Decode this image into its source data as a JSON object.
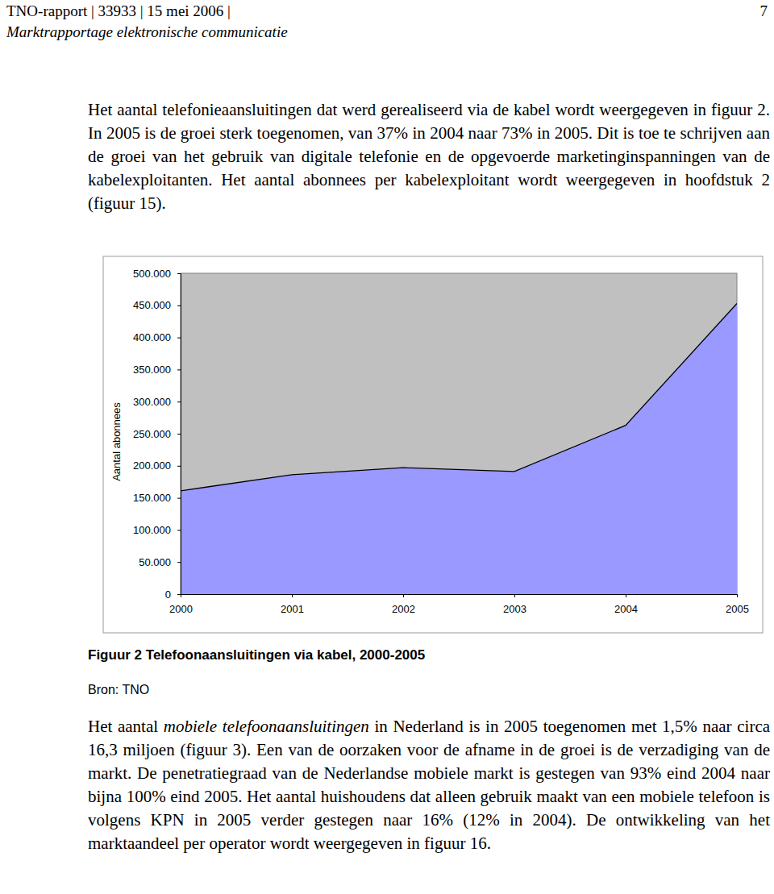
{
  "header": {
    "left": "TNO-rapport | 33933 | 15 mei 2006 |",
    "page": "7",
    "subtitle": "Marktrapportage elektronische communicatie"
  },
  "paragraphs": [
    {
      "before": "Het aantal telefonieaansluitingen dat werd gerealiseerd via de kabel wordt weergegeven in figuur 2. In 2005 is de groei sterk toegenomen, van 37% in 2004 naar 73% in 2005. Dit is toe te schrijven aan de groei van het gebruik van digitale telefonie en de opgevoerde marketinginspanningen van de kabelexploitanten. Het aantal abonnees per kabelexploitant wordt weergegeven in hoofdstuk 2 (figuur 15)."
    },
    {
      "before": "Het aantal ",
      "emphasis": "mobiele telefoonaansluitingen",
      "after": " in Nederland is in 2005 toegenomen met 1,5% naar circa 16,3 miljoen (figuur 3). Een van de oorzaken voor de afname in de groei is de verzadiging van de markt. De penetratiegraad van de Nederlandse mobiele markt is gestegen van 93% eind 2004 naar bijna 100% eind 2005. Het aantal huishoudens dat alleen gebruik maakt van een mobiele telefoon is volgens KPN in 2005 verder gestegen naar 16% (12% in 2004). De ontwikkeling van het marktaandeel per operator wordt weergegeven in figuur 16."
    }
  ],
  "chart_data": {
    "type": "area",
    "title": "Figuur 2 Telefoonaansluitingen via kabel, 2000-2005",
    "source": "Bron: TNO",
    "y_label": "Aantal abonnees",
    "categories": [
      "2000",
      "2001",
      "2002",
      "2003",
      "2004",
      "2005"
    ],
    "values": [
      161000,
      186000,
      197000,
      191000,
      263000,
      453000
    ],
    "color": "#9999ff",
    "ylim": [
      0,
      500000
    ],
    "yticks": [
      0,
      {
        "value": 50000,
        "label": "50.000"
      },
      {
        "value": 100000,
        "label": "100.000"
      },
      {
        "value": 150000,
        "label": "150.000"
      },
      {
        "value": 200000,
        "label": "200.000"
      },
      {
        "value": 250000,
        "label": "250.000"
      },
      {
        "value": 300000,
        "label": "300.000"
      },
      {
        "value": 350000,
        "label": "350.000"
      },
      {
        "value": 400000,
        "label": "400.000"
      },
      {
        "value": 450000,
        "label": "450.000"
      },
      {
        "value": 500000,
        "label": "500.000"
      }
    ],
    "grid": false
  }
}
